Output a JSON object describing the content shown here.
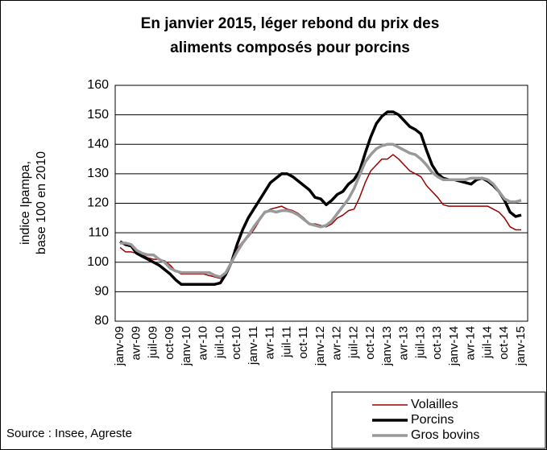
{
  "chart_data": {
    "type": "line",
    "title": [
      "En janvier 2015, léger rebond du prix des",
      "aliments composés pour porcins"
    ],
    "y_label": [
      "indice Ipampa,",
      "base 100 en 2010"
    ],
    "source": "Source : Insee, Agreste",
    "categories": [
      "janv-09",
      null,
      null,
      "avr-09",
      null,
      null,
      "juil-09",
      null,
      null,
      "oct-09",
      null,
      null,
      "janv-10",
      null,
      null,
      "avr-10",
      null,
      null,
      "juil-10",
      null,
      null,
      "oct-10",
      null,
      null,
      "janv-11",
      null,
      null,
      "avr-11",
      null,
      null,
      "juil-11",
      null,
      null,
      "oct-11",
      null,
      null,
      "janv-12",
      null,
      null,
      "avr-12",
      null,
      null,
      "juil-12",
      null,
      null,
      "oct-12",
      null,
      null,
      "janv-13",
      null,
      null,
      "avr-13",
      null,
      null,
      "juil-13",
      null,
      null,
      "oct-13",
      null,
      null,
      "janv-14",
      null,
      null,
      "avr-14",
      null,
      null,
      "juil-14",
      null,
      null,
      "oct-14",
      null,
      null,
      "janv-15"
    ],
    "series": [
      {
        "name": "Volailles",
        "color": "#990000",
        "width": 1.5,
        "values": [
          105,
          103.5,
          103.5,
          103,
          102.5,
          101.5,
          101,
          101,
          100.5,
          99,
          97,
          96,
          96,
          96,
          96,
          96,
          95.5,
          95,
          94.5,
          96,
          100,
          104.5,
          107,
          108.5,
          111,
          114,
          117,
          118,
          118.5,
          119,
          118,
          117.5,
          116.5,
          115,
          113,
          113,
          112.5,
          112,
          113,
          115,
          116,
          117.5,
          118,
          122,
          127,
          131,
          133,
          135,
          135,
          136.5,
          135,
          133,
          131,
          130,
          129,
          126,
          124,
          122,
          119.5,
          119,
          119,
          119,
          119,
          119,
          119,
          119,
          119,
          118,
          117,
          115,
          112,
          111,
          111
        ]
      },
      {
        "name": "Porcins",
        "color": "#000000",
        "width": 3.5,
        "values": [
          107,
          106,
          105.5,
          103,
          102,
          101,
          100,
          99,
          97.5,
          96,
          94,
          92.5,
          92.5,
          92.5,
          92.5,
          92.5,
          92.5,
          92.5,
          93,
          96,
          100,
          106,
          111,
          115,
          118,
          121,
          124,
          127,
          128.5,
          130,
          130,
          129,
          127.5,
          126,
          124.5,
          122,
          121.5,
          119.5,
          121,
          123,
          124,
          126.5,
          128,
          131,
          137,
          142.5,
          147,
          149.5,
          151,
          151,
          150,
          148,
          146,
          145,
          143.5,
          138,
          133,
          130,
          128.5,
          128,
          128,
          127.5,
          127,
          126.5,
          128,
          128.5,
          127.5,
          126,
          124,
          121,
          117,
          115.5,
          116
        ]
      },
      {
        "name": "Gros bovins",
        "color": "#999999",
        "width": 3.5,
        "values": [
          106.5,
          106.5,
          106,
          104,
          103,
          102.5,
          102.5,
          101,
          100,
          98,
          97,
          96.5,
          96.5,
          96.5,
          96.5,
          96.5,
          96.5,
          95.5,
          95,
          96.5,
          100,
          103.5,
          106.5,
          109,
          112,
          114.5,
          117,
          117.5,
          117,
          117.5,
          117.5,
          117,
          116,
          114.5,
          113,
          112.5,
          112,
          112.5,
          114,
          116.5,
          119,
          121.5,
          125,
          129.5,
          134,
          136.5,
          138.5,
          139.5,
          140,
          140,
          139,
          138,
          137,
          136.5,
          135,
          133,
          130.5,
          129,
          128,
          128,
          128,
          128,
          128,
          128.5,
          128.5,
          128.5,
          128,
          126.5,
          124,
          121.5,
          120.5,
          120.5,
          121
        ]
      }
    ],
    "ylim": [
      80,
      160
    ],
    "yticks": [
      80,
      90,
      100,
      110,
      120,
      130,
      140,
      150,
      160
    ],
    "grid": true
  }
}
